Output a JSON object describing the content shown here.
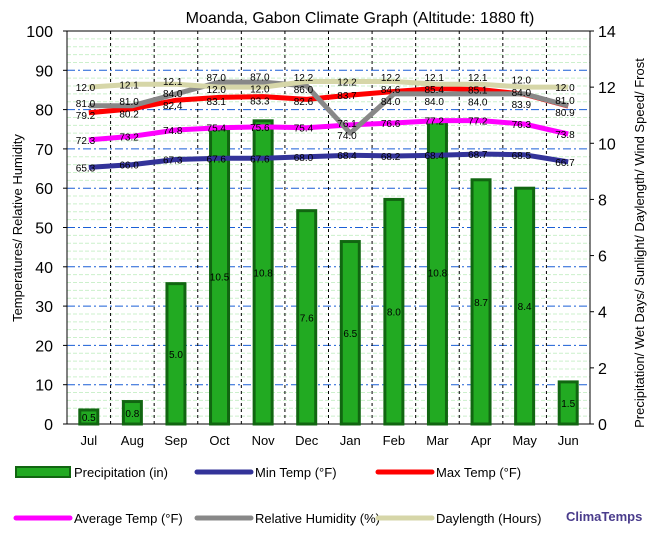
{
  "chart_data": {
    "type": "bar+line",
    "title": "Moanda, Gabon Climate Graph (Altitude: 1880 ft)",
    "ylabel": "Temperatures/ Relative Humidity",
    "y2label": "Precipitation/ Wet Days/ Sunlight/ Daylength/ Wind Speed/ Frost",
    "ylim": [
      0,
      100
    ],
    "y2lim": [
      0,
      14
    ],
    "yticks": [
      "0",
      "10",
      "20",
      "30",
      "40",
      "50",
      "60",
      "70",
      "80",
      "90",
      "100"
    ],
    "y2ticks": [
      "0",
      "2",
      "4",
      "6",
      "8",
      "10",
      "12",
      "14"
    ],
    "categories": [
      "Jul",
      "Aug",
      "Sep",
      "Oct",
      "Nov",
      "Dec",
      "Jan",
      "Feb",
      "Mar",
      "Apr",
      "May",
      "Jun"
    ],
    "grid": true,
    "series": [
      {
        "name": "Precipitation (in)",
        "type": "bar",
        "axis": "right",
        "color": "#22aa22",
        "values": [
          0.5,
          0.8,
          5.0,
          10.5,
          10.8,
          7.6,
          6.5,
          8.0,
          10.8,
          8.7,
          8.4,
          1.5
        ]
      },
      {
        "name": "Min Temp (°F)",
        "type": "line",
        "color": "#333399",
        "values": [
          65.3,
          66.0,
          67.3,
          67.6,
          67.6,
          68.0,
          68.4,
          68.2,
          68.4,
          68.7,
          68.5,
          66.7
        ]
      },
      {
        "name": "Max Temp (°F)",
        "type": "line",
        "color": "#ff0000",
        "values": [
          79.2,
          80.2,
          82.4,
          83.1,
          83.3,
          82.6,
          83.7,
          84.6,
          85.4,
          85.1,
          83.9,
          80.9
        ]
      },
      {
        "name": "Average Temp (°F)",
        "type": "line",
        "color": "#ff00ff",
        "values": [
          72.3,
          73.2,
          74.8,
          75.4,
          75.6,
          75.4,
          76.1,
          76.6,
          77.2,
          77.2,
          76.3,
          73.8
        ]
      },
      {
        "name": "Relative Humidity (%)",
        "type": "line",
        "color": "#888888",
        "values": [
          81.0,
          81.0,
          84.0,
          87.0,
          87.0,
          86.0,
          74.0,
          84.0,
          84.0,
          84.0,
          84.0,
          81.0
        ]
      },
      {
        "name": "Daylength (Hours)",
        "type": "line",
        "axis": "right",
        "color": "#d6d6a8",
        "values": [
          12.0,
          12.1,
          12.1,
          12.0,
          12.0,
          12.2,
          12.2,
          12.2,
          12.1,
          12.1,
          12.0,
          12.0
        ]
      }
    ]
  },
  "brand": "ClimaTemps"
}
